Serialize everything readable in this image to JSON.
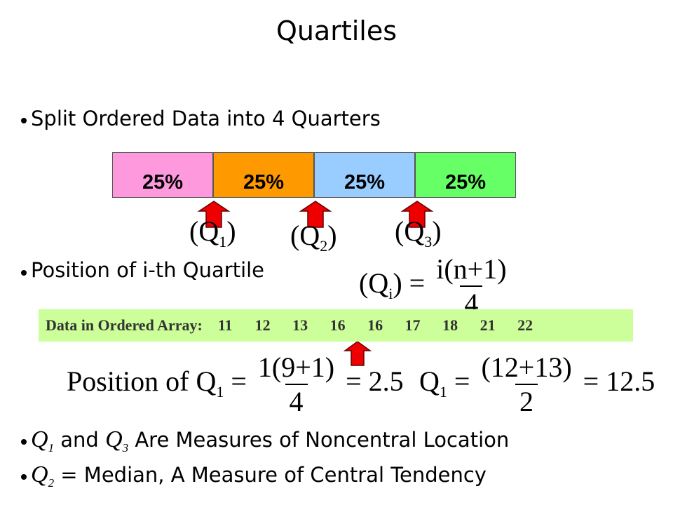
{
  "title": "Quartiles",
  "bullets": {
    "first": "Split Ordered Data into 4 Quarters",
    "second": "Position of i-th Quartile",
    "third": {
      "q_a": {
        "letter": "Q",
        "sub": "1"
      },
      "mid": "and",
      "q_b": {
        "letter": "Q",
        "sub": "3"
      },
      "rest": "Are Measures of Noncentral Location"
    },
    "fourth": {
      "q": {
        "letter": "Q",
        "sub": "2"
      },
      "rest": "= Median, A Measure of Central Tendency"
    }
  },
  "quarters": [
    "25%",
    "25%",
    "25%",
    "25%"
  ],
  "quartile_labels": [
    {
      "pre": "(Q",
      "sub": "1",
      "post": ")"
    },
    {
      "pre": "(Q",
      "sub": "2",
      "post": ")"
    },
    {
      "pre": "(Q",
      "sub": "3",
      "post": ")"
    }
  ],
  "position_formula": {
    "pre": "(Q",
    "sub": "i",
    "post": ") =",
    "numerator": "i(n+1)",
    "denominator": "4"
  },
  "data_array": {
    "label": "Data in Ordered Array:",
    "values": [
      11,
      12,
      13,
      16,
      16,
      17,
      18,
      21,
      22
    ]
  },
  "example_position": {
    "pre": "Position of Q",
    "sub": "1",
    "eq": "=",
    "numerator": "1(9+1)",
    "denominator": "4",
    "result": "= 2.5"
  },
  "example_value": {
    "pre": "Q",
    "sub": "1",
    "eq": "=",
    "numerator": "(12+13)",
    "denominator": "2",
    "result": "= 12.5"
  }
}
